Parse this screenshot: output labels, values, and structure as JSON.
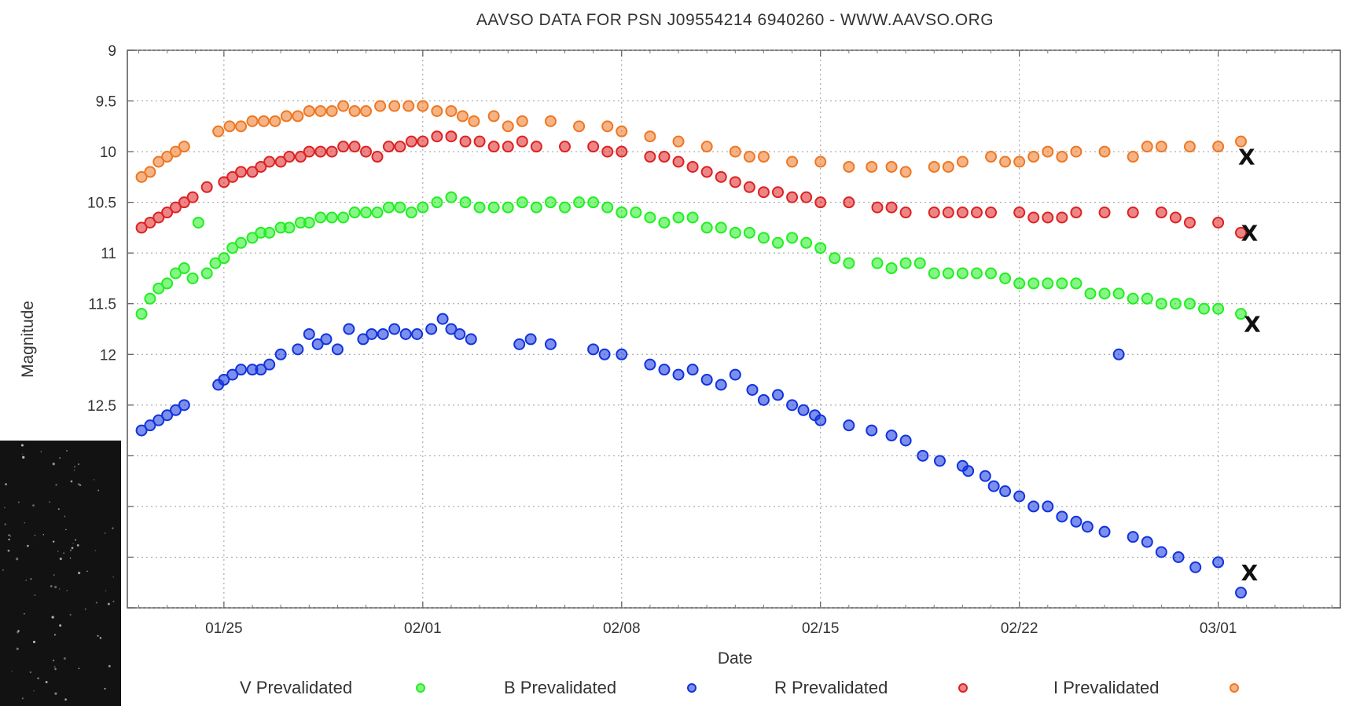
{
  "chart_data": {
    "type": "scatter",
    "title": "AAVSO DATA FOR PSN J09554214 6940260 - WWW.AAVSO.ORG",
    "xlabel": "Date",
    "ylabel": "Magnitude",
    "x_unit": "days since 01/25",
    "xlim": [
      -3.4,
      39.3
    ],
    "ylim": [
      9,
      14.5
    ],
    "y_inverted": true,
    "grid": true,
    "x_ticks": [
      {
        "x": 0,
        "label": "01/25"
      },
      {
        "x": 7,
        "label": "02/01"
      },
      {
        "x": 14,
        "label": "02/08"
      },
      {
        "x": 21,
        "label": "02/15"
      },
      {
        "x": 28,
        "label": "02/22"
      },
      {
        "x": 35,
        "label": "03/01"
      }
    ],
    "y_ticks": [
      {
        "y": 9,
        "label": "9"
      },
      {
        "y": 9.5,
        "label": "9.5"
      },
      {
        "y": 10,
        "label": "10"
      },
      {
        "y": 10.5,
        "label": "10.5"
      },
      {
        "y": 11,
        "label": "11"
      },
      {
        "y": 11.5,
        "label": "11.5"
      },
      {
        "y": 12,
        "label": "12"
      },
      {
        "y": 12.5,
        "label": "12.5"
      },
      {
        "y": 13,
        "label": ""
      },
      {
        "y": 13.5,
        "label": ""
      },
      {
        "y": 14,
        "label": ""
      },
      {
        "y": 14.5,
        "label": ""
      }
    ],
    "legend_position": "bottom",
    "series": [
      {
        "name": "V Prevalidated",
        "color": "#22ee22",
        "x": [
          -2.9,
          -2.6,
          -2.3,
          -2.0,
          -1.7,
          -1.4,
          -1.1,
          -0.9,
          -0.6,
          -0.3,
          0.0,
          0.3,
          0.6,
          1.0,
          1.3,
          1.6,
          2.0,
          2.3,
          2.7,
          3.0,
          3.4,
          3.8,
          4.2,
          4.6,
          5.0,
          5.4,
          5.8,
          6.2,
          6.6,
          7.0,
          7.5,
          8.0,
          8.5,
          9.0,
          9.5,
          10.0,
          10.5,
          11.0,
          11.5,
          12.0,
          12.5,
          13.0,
          13.5,
          14.0,
          14.5,
          15.0,
          15.5,
          16.0,
          16.5,
          17.0,
          17.5,
          18.0,
          18.5,
          19.0,
          19.5,
          20.0,
          20.5,
          21.0,
          21.5,
          22.0,
          23.0,
          23.5,
          24.0,
          24.5,
          25.0,
          25.5,
          26.0,
          26.5,
          27.0,
          27.5,
          28.0,
          28.5,
          29.0,
          29.5,
          30.0,
          30.5,
          31.0,
          31.5,
          32.0,
          32.5,
          33.0,
          33.5,
          34.0,
          34.5,
          35.0,
          35.8
        ],
        "y": [
          11.6,
          11.45,
          11.35,
          11.3,
          11.2,
          11.15,
          11.25,
          10.7,
          11.2,
          11.1,
          11.05,
          10.95,
          10.9,
          10.85,
          10.8,
          10.8,
          10.75,
          10.75,
          10.7,
          10.7,
          10.65,
          10.65,
          10.65,
          10.6,
          10.6,
          10.6,
          10.55,
          10.55,
          10.6,
          10.55,
          10.5,
          10.45,
          10.5,
          10.55,
          10.55,
          10.55,
          10.5,
          10.55,
          10.5,
          10.55,
          10.5,
          10.5,
          10.55,
          10.6,
          10.6,
          10.65,
          10.7,
          10.65,
          10.65,
          10.75,
          10.75,
          10.8,
          10.8,
          10.85,
          10.9,
          10.85,
          10.9,
          10.95,
          11.05,
          11.1,
          11.1,
          11.15,
          11.1,
          11.1,
          11.2,
          11.2,
          11.2,
          11.2,
          11.2,
          11.25,
          11.3,
          11.3,
          11.3,
          11.3,
          11.3,
          11.4,
          11.4,
          11.4,
          11.45,
          11.45,
          11.5,
          11.5,
          11.5,
          11.55,
          11.55,
          11.6
        ]
      },
      {
        "name": "B Prevalidated",
        "color": "#1133dd",
        "x": [
          -2.9,
          -2.6,
          -2.3,
          -2.0,
          -1.7,
          -1.4,
          -0.2,
          0.0,
          0.3,
          0.6,
          1.0,
          1.3,
          1.6,
          2.0,
          2.6,
          3.0,
          3.3,
          3.6,
          4.0,
          4.4,
          4.9,
          5.2,
          5.6,
          6.0,
          6.4,
          6.8,
          7.3,
          7.7,
          8.0,
          8.3,
          8.7,
          10.4,
          10.8,
          11.5,
          13.0,
          13.4,
          14.0,
          15.0,
          15.5,
          16.0,
          16.5,
          17.0,
          17.5,
          18.0,
          18.6,
          19.0,
          19.5,
          20.0,
          20.4,
          20.8,
          21.0,
          22.0,
          22.8,
          23.5,
          24.0,
          24.6,
          25.2,
          26.0,
          26.2,
          26.8,
          27.1,
          27.5,
          28.0,
          28.5,
          29.0,
          29.5,
          30.0,
          30.4,
          31.0,
          31.5,
          32.0,
          32.5,
          33.0,
          33.6,
          34.2,
          35.0,
          35.8
        ],
        "y": [
          12.75,
          12.7,
          12.65,
          12.6,
          12.55,
          12.5,
          12.3,
          12.25,
          12.2,
          12.15,
          12.15,
          12.15,
          12.1,
          12.0,
          11.95,
          11.8,
          11.9,
          11.85,
          11.95,
          11.75,
          11.85,
          11.8,
          11.8,
          11.75,
          11.8,
          11.8,
          11.75,
          11.65,
          11.75,
          11.8,
          11.85,
          11.9,
          11.85,
          11.9,
          11.95,
          12.0,
          12.0,
          12.1,
          12.15,
          12.2,
          12.15,
          12.25,
          12.3,
          12.2,
          12.35,
          12.45,
          12.4,
          12.5,
          12.55,
          12.6,
          12.65,
          12.7,
          12.75,
          12.8,
          12.85,
          13.0,
          13.05,
          13.1,
          13.15,
          13.2,
          13.3,
          13.35,
          13.4,
          13.5,
          13.5,
          13.6,
          13.65,
          13.7,
          13.75,
          12.0,
          13.8,
          13.85,
          13.95,
          14.0,
          14.1,
          14.05,
          14.35
        ]
      },
      {
        "name": "R Prevalidated",
        "color": "#dd2222",
        "x": [
          -2.9,
          -2.6,
          -2.3,
          -2.0,
          -1.7,
          -1.4,
          -1.1,
          -0.6,
          0.0,
          0.3,
          0.6,
          1.0,
          1.3,
          1.6,
          2.0,
          2.3,
          2.7,
          3.0,
          3.4,
          3.8,
          4.2,
          4.6,
          5.0,
          5.4,
          5.8,
          6.2,
          6.6,
          7.0,
          7.5,
          8.0,
          8.5,
          9.0,
          9.5,
          10.0,
          10.5,
          11.0,
          12.0,
          13.0,
          13.5,
          14.0,
          15.0,
          15.5,
          16.0,
          16.5,
          17.0,
          17.5,
          18.0,
          18.5,
          19.0,
          19.5,
          20.0,
          20.5,
          21.0,
          22.0,
          23.0,
          23.5,
          24.0,
          25.0,
          25.5,
          26.0,
          26.5,
          27.0,
          28.0,
          28.5,
          29.0,
          29.5,
          30.0,
          31.0,
          32.0,
          33.0,
          33.5,
          34.0,
          35.0,
          35.8
        ],
        "y": [
          10.75,
          10.7,
          10.65,
          10.6,
          10.55,
          10.5,
          10.45,
          10.35,
          10.3,
          10.25,
          10.2,
          10.2,
          10.15,
          10.1,
          10.1,
          10.05,
          10.05,
          10.0,
          10.0,
          10.0,
          9.95,
          9.95,
          10.0,
          10.05,
          9.95,
          9.95,
          9.9,
          9.9,
          9.85,
          9.85,
          9.9,
          9.9,
          9.95,
          9.95,
          9.9,
          9.95,
          9.95,
          9.95,
          10.0,
          10.0,
          10.05,
          10.05,
          10.1,
          10.15,
          10.2,
          10.25,
          10.3,
          10.35,
          10.4,
          10.4,
          10.45,
          10.45,
          10.5,
          10.5,
          10.55,
          10.55,
          10.6,
          10.6,
          10.6,
          10.6,
          10.6,
          10.6,
          10.6,
          10.65,
          10.65,
          10.65,
          10.6,
          10.6,
          10.6,
          10.6,
          10.65,
          10.7,
          10.7,
          10.8
        ]
      },
      {
        "name": "I Prevalidated",
        "color": "#ee7722",
        "x": [
          -2.9,
          -2.6,
          -2.3,
          -2.0,
          -1.7,
          -1.4,
          -0.2,
          0.2,
          0.6,
          1.0,
          1.4,
          1.8,
          2.2,
          2.6,
          3.0,
          3.4,
          3.8,
          4.2,
          4.6,
          5.0,
          5.5,
          6.0,
          6.5,
          7.0,
          7.5,
          8.0,
          8.4,
          8.8,
          9.5,
          10.0,
          10.5,
          11.5,
          12.5,
          13.5,
          14.0,
          15.0,
          16.0,
          17.0,
          18.0,
          18.5,
          19.0,
          20.0,
          21.0,
          22.0,
          22.8,
          23.5,
          24.0,
          25.0,
          25.5,
          26.0,
          27.0,
          27.5,
          28.0,
          28.5,
          29.0,
          29.5,
          30.0,
          31.0,
          32.0,
          32.5,
          33.0,
          34.0,
          35.0,
          35.8
        ],
        "y": [
          10.25,
          10.2,
          10.1,
          10.05,
          10.0,
          9.95,
          9.8,
          9.75,
          9.75,
          9.7,
          9.7,
          9.7,
          9.65,
          9.65,
          9.6,
          9.6,
          9.6,
          9.55,
          9.6,
          9.6,
          9.55,
          9.55,
          9.55,
          9.55,
          9.6,
          9.6,
          9.65,
          9.7,
          9.65,
          9.75,
          9.7,
          9.7,
          9.75,
          9.75,
          9.8,
          9.85,
          9.9,
          9.95,
          10.0,
          10.05,
          10.05,
          10.1,
          10.1,
          10.15,
          10.15,
          10.15,
          10.2,
          10.15,
          10.15,
          10.1,
          10.05,
          10.1,
          10.1,
          10.05,
          10.0,
          10.05,
          10.0,
          10.0,
          10.05,
          9.95,
          9.95,
          9.95,
          9.95,
          9.9
        ]
      }
    ],
    "uncertain_points": {
      "label": "X",
      "color": "#111111",
      "x": [
        36.0,
        36.1,
        36.2,
        36.1
      ],
      "y": [
        10.05,
        10.8,
        11.7,
        14.15
      ]
    }
  },
  "thumbnail": {
    "name": "night-sky-image",
    "color": "#121212"
  }
}
